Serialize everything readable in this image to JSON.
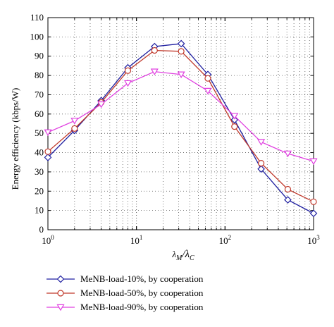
{
  "chart_data": {
    "type": "line",
    "xscale": "log",
    "xlim": [
      1,
      1000
    ],
    "ylim": [
      0,
      110
    ],
    "grid": true,
    "legend_position": "bottom",
    "ylabel": "Energy efficiency (kbps/W)",
    "xlabel": {
      "main": "λ",
      "sub1": "M",
      "sep": "/λ",
      "sub2": "C"
    },
    "yticks": [
      0,
      10,
      20,
      30,
      40,
      50,
      60,
      70,
      80,
      90,
      100,
      110
    ],
    "xticks": [
      {
        "value": 1,
        "base": "10",
        "exp": "0"
      },
      {
        "value": 10,
        "base": "10",
        "exp": "1"
      },
      {
        "value": 100,
        "base": "10",
        "exp": "2"
      },
      {
        "value": 1000,
        "base": "10",
        "exp": "3"
      }
    ],
    "x": [
      1,
      2,
      4,
      8,
      16,
      32,
      64,
      128,
      256,
      512,
      1000
    ],
    "series": [
      {
        "name": "MeNB-load-10%, by cooperation",
        "color": "#1f1fa0",
        "marker": "diamond",
        "values": [
          37.5,
          51.5,
          67,
          84,
          95,
          96.5,
          80.5,
          57,
          31.5,
          15.5,
          8.5
        ]
      },
      {
        "name": "MeNB-load-50%, by cooperation",
        "color": "#c0392b",
        "marker": "circle",
        "values": [
          40.5,
          52.5,
          66,
          82.5,
          93,
          92.5,
          78.5,
          53.5,
          34.5,
          21,
          14.5
        ]
      },
      {
        "name": "MeNB-load-90%, by cooperation",
        "color": "#e040e0",
        "marker": "triangle-down",
        "values": [
          50.5,
          56.5,
          65,
          76,
          82,
          80.5,
          72,
          59,
          45.5,
          39.5,
          35.5
        ]
      }
    ]
  }
}
